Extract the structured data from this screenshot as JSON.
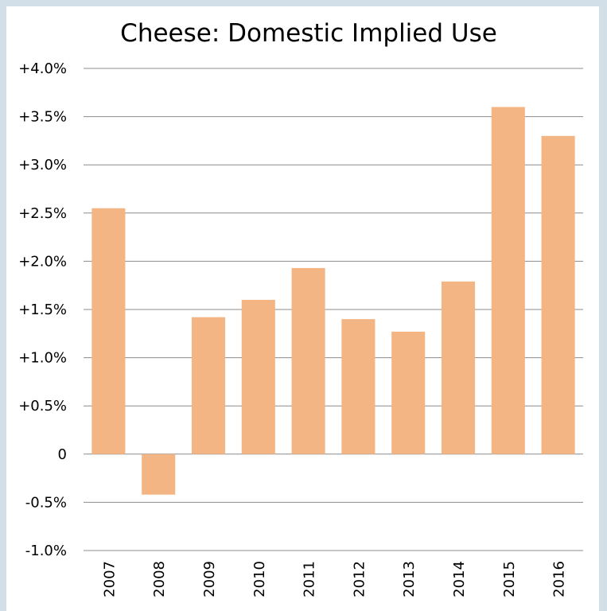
{
  "chart_data": {
    "type": "bar",
    "title": "Cheese: Domestic Implied Use",
    "xlabel": "",
    "ylabel": "",
    "categories": [
      "2007",
      "2008",
      "2009",
      "2010",
      "2011",
      "2012",
      "2013",
      "2014",
      "2015",
      "2016"
    ],
    "values": [
      2.55,
      -0.42,
      1.42,
      1.6,
      1.93,
      1.4,
      1.27,
      1.79,
      3.6,
      3.3
    ],
    "ylim": [
      -1.0,
      4.0
    ],
    "yticks": [
      4.0,
      3.5,
      3.0,
      2.5,
      2.0,
      1.5,
      1.0,
      0.5,
      0,
      -0.5,
      -1.0
    ],
    "ytick_labels": [
      "+4.0%",
      "+3.5%",
      "+3.0%",
      "+2.5%",
      "+2.0%",
      "+1.5%",
      "+1.0%",
      "+0.5%",
      "0",
      "-0.5%",
      "-1.0%"
    ],
    "grid": true,
    "legend": "none",
    "colors": {
      "bar": "#f2b583",
      "grid": "#8c8c8c",
      "frame": "#d3dfe8"
    }
  }
}
